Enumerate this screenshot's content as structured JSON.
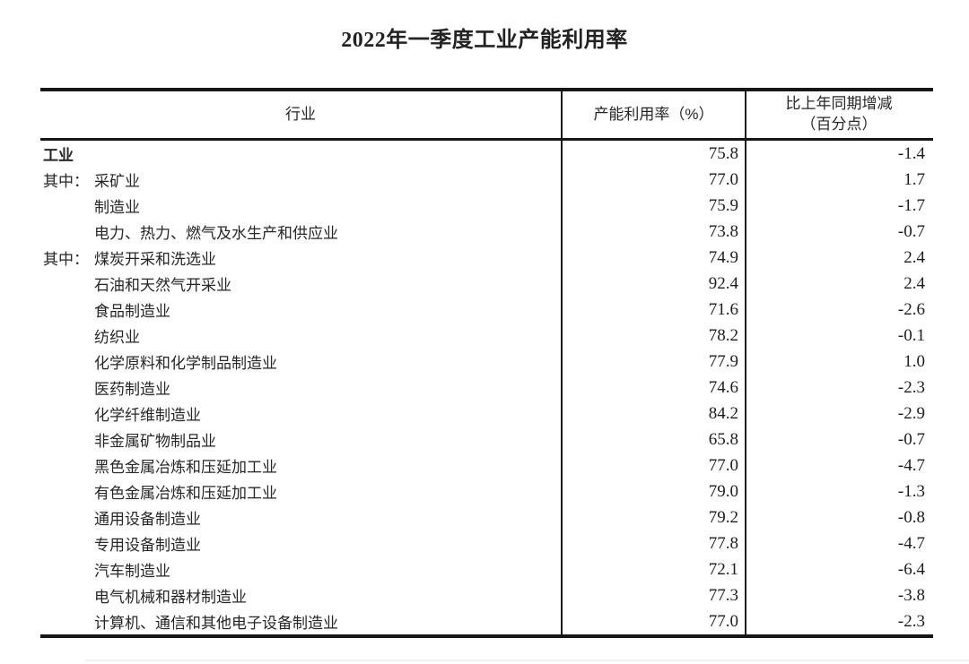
{
  "page": {
    "title": "2022年一季度工业产能利用率"
  },
  "table": {
    "columns": {
      "industry": "行业",
      "rate": "产能利用率（%）",
      "change_line1": "比上年同期增减",
      "change_line2": "（百分点）"
    },
    "rows": [
      {
        "prefix": "",
        "name": "工业",
        "rate": "75.8",
        "change": "-1.4",
        "bold": true,
        "indent": false
      },
      {
        "prefix": "其中：",
        "name": "采矿业",
        "rate": "77.0",
        "change": "1.7",
        "bold": false,
        "indent": false
      },
      {
        "prefix": "",
        "name": "制造业",
        "rate": "75.9",
        "change": "-1.7",
        "bold": false,
        "indent": true
      },
      {
        "prefix": "",
        "name": "电力、热力、燃气及水生产和供应业",
        "rate": "73.8",
        "change": "-0.7",
        "bold": false,
        "indent": true
      },
      {
        "prefix": "其中：",
        "name": "煤炭开采和洗选业",
        "rate": "74.9",
        "change": "2.4",
        "bold": false,
        "indent": false
      },
      {
        "prefix": "",
        "name": "石油和天然气开采业",
        "rate": "92.4",
        "change": "2.4",
        "bold": false,
        "indent": true
      },
      {
        "prefix": "",
        "name": "食品制造业",
        "rate": "71.6",
        "change": "-2.6",
        "bold": false,
        "indent": true
      },
      {
        "prefix": "",
        "name": "纺织业",
        "rate": "78.2",
        "change": "-0.1",
        "bold": false,
        "indent": true
      },
      {
        "prefix": "",
        "name": "化学原料和化学制品制造业",
        "rate": "77.9",
        "change": "1.0",
        "bold": false,
        "indent": true
      },
      {
        "prefix": "",
        "name": "医药制造业",
        "rate": "74.6",
        "change": "-2.3",
        "bold": false,
        "indent": true
      },
      {
        "prefix": "",
        "name": "化学纤维制造业",
        "rate": "84.2",
        "change": "-2.9",
        "bold": false,
        "indent": true
      },
      {
        "prefix": "",
        "name": "非金属矿物制品业",
        "rate": "65.8",
        "change": "-0.7",
        "bold": false,
        "indent": true
      },
      {
        "prefix": "",
        "name": "黑色金属冶炼和压延加工业",
        "rate": "77.0",
        "change": "-4.7",
        "bold": false,
        "indent": true
      },
      {
        "prefix": "",
        "name": "有色金属冶炼和压延加工业",
        "rate": "79.0",
        "change": "-1.3",
        "bold": false,
        "indent": true
      },
      {
        "prefix": "",
        "name": "通用设备制造业",
        "rate": "79.2",
        "change": "-0.8",
        "bold": false,
        "indent": true
      },
      {
        "prefix": "",
        "name": "专用设备制造业",
        "rate": "77.8",
        "change": "-4.7",
        "bold": false,
        "indent": true
      },
      {
        "prefix": "",
        "name": "汽车制造业",
        "rate": "72.1",
        "change": "-6.4",
        "bold": false,
        "indent": true
      },
      {
        "prefix": "",
        "name": "电气机械和器材制造业",
        "rate": "77.3",
        "change": "-3.8",
        "bold": false,
        "indent": true
      },
      {
        "prefix": "",
        "name": "计算机、通信和其他电子设备制造业",
        "rate": "77.0",
        "change": "-2.3",
        "bold": false,
        "indent": true
      }
    ]
  },
  "chart_data": {
    "type": "table",
    "title": "2022年一季度工业产能利用率",
    "columns": [
      "行业",
      "产能利用率（%）",
      "比上年同期增减（百分点）"
    ],
    "rows": [
      [
        "工业",
        75.8,
        -1.4
      ],
      [
        "其中：采矿业",
        77.0,
        1.7
      ],
      [
        "制造业",
        75.9,
        -1.7
      ],
      [
        "电力、热力、燃气及水生产和供应业",
        73.8,
        -0.7
      ],
      [
        "其中：煤炭开采和洗选业",
        74.9,
        2.4
      ],
      [
        "石油和天然气开采业",
        92.4,
        2.4
      ],
      [
        "食品制造业",
        71.6,
        -2.6
      ],
      [
        "纺织业",
        78.2,
        -0.1
      ],
      [
        "化学原料和化学制品制造业",
        77.9,
        1.0
      ],
      [
        "医药制造业",
        74.6,
        -2.3
      ],
      [
        "化学纤维制造业",
        84.2,
        -2.9
      ],
      [
        "非金属矿物制品业",
        65.8,
        -0.7
      ],
      [
        "黑色金属冶炼和压延加工业",
        77.0,
        -4.7
      ],
      [
        "有色金属冶炼和压延加工业",
        79.0,
        -1.3
      ],
      [
        "通用设备制造业",
        79.2,
        -0.8
      ],
      [
        "专用设备制造业",
        77.8,
        -4.7
      ],
      [
        "汽车制造业",
        72.1,
        -6.4
      ],
      [
        "电气机械和器材制造业",
        77.3,
        -3.8
      ],
      [
        "计算机、通信和其他电子设备制造业",
        77.0,
        -2.3
      ]
    ]
  }
}
